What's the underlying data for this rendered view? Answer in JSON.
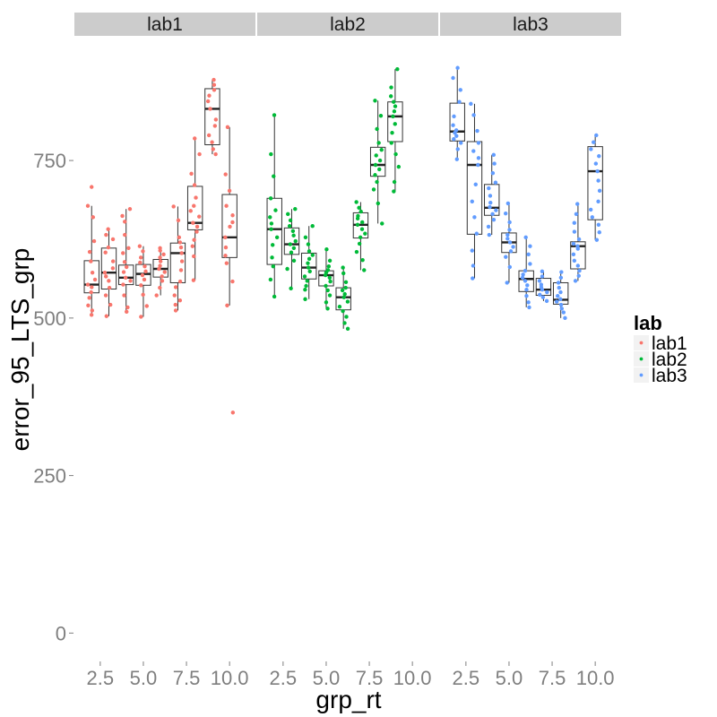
{
  "chart_data": {
    "type": "boxplot",
    "xlabel": "grp_rt",
    "ylabel": "error_95_LTS_grp",
    "ylim": [
      -45,
      945
    ],
    "y_ticks": [
      0,
      250,
      500,
      750
    ],
    "x_ticks": [
      "2.5",
      "5.0",
      "7.5",
      "10.0"
    ],
    "x_tick_values": [
      2.5,
      5.0,
      7.5,
      10.0
    ],
    "xlim": [
      1.0,
      11.5
    ],
    "legend": {
      "title": "lab",
      "position": "right",
      "entries": [
        "lab1",
        "lab2",
        "lab3"
      ]
    },
    "colors": {
      "lab1": "#F8766D",
      "lab2": "#00BA38",
      "lab3": "#619CFF"
    },
    "panels": [
      {
        "name": "lab1",
        "boxes": [
          {
            "x": 2.0,
            "whisker_low": 505,
            "q1": 540,
            "median": 553,
            "q3": 591,
            "whisker_high": 678,
            "points": [
              505,
              512,
              520,
              532,
              541,
              549,
              553,
              561,
              572,
              590,
              605,
              622,
              660,
              678,
              708
            ]
          },
          {
            "x": 3.0,
            "whisker_low": 503,
            "q1": 546,
            "median": 572,
            "q3": 611,
            "whisker_high": 641,
            "points": [
              503,
              521,
              536,
              548,
              559,
              566,
              572,
              579,
              590,
              604,
              612,
              625,
              632,
              641
            ]
          },
          {
            "x": 4.0,
            "whisker_low": 510,
            "q1": 553,
            "median": 564,
            "q3": 584,
            "whisker_high": 673,
            "points": [
              510,
              517,
              536,
              553,
              559,
              564,
              573,
              581,
              589,
              603,
              611,
              632,
              653,
              662,
              673
            ]
          },
          {
            "x": 5.0,
            "whisker_low": 502,
            "q1": 552,
            "median": 570,
            "q3": 585,
            "whisker_high": 614,
            "points": [
              502,
              519,
              537,
              552,
              561,
              568,
              574,
              582,
              588,
              596,
              606,
              614
            ]
          },
          {
            "x": 6.0,
            "whisker_low": 536,
            "q1": 565,
            "median": 578,
            "q3": 593,
            "whisker_high": 611,
            "points": [
              536,
              548,
              559,
              566,
              573,
              578,
              583,
              590,
              596,
              601,
              607,
              611
            ]
          },
          {
            "x": 7.0,
            "whisker_low": 512,
            "q1": 556,
            "median": 603,
            "q3": 619,
            "whisker_high": 677,
            "points": [
              512,
              521,
              528,
              536,
              549,
              558,
              576,
              590,
              603,
              612,
              620,
              628,
              655,
              677
            ]
          },
          {
            "x": 8.0,
            "whisker_low": 560,
            "q1": 640,
            "median": 651,
            "q3": 709,
            "whisker_high": 785,
            "points": [
              560,
              598,
              614,
              624,
              637,
              645,
              651,
              661,
              670,
              678,
              691,
              711,
              729,
              760,
              785
            ]
          },
          {
            "x": 9.0,
            "whisker_low": 760,
            "q1": 775,
            "median": 832,
            "q3": 864,
            "whisker_high": 878,
            "points": [
              760,
              768,
              779,
              790,
              805,
              815,
              832,
              844,
              853,
              862,
              870,
              878
            ]
          },
          {
            "x": 10.0,
            "whisker_low": 520,
            "q1": 596,
            "median": 628,
            "q3": 696,
            "whisker_high": 803,
            "points": [
              350,
              520,
              558,
              587,
              599,
              612,
              628,
              645,
              652,
              663,
              678,
              702,
              728,
              803
            ]
          }
        ]
      },
      {
        "name": "lab2",
        "boxes": [
          {
            "x": 2.0,
            "whisker_low": 534,
            "q1": 585,
            "median": 641,
            "q3": 690,
            "whisker_high": 822,
            "points": [
              534,
              561,
              582,
              596,
              616,
              628,
              641,
              650,
              660,
              671,
              690,
              725,
              760,
              822
            ]
          },
          {
            "x": 3.0,
            "whisker_low": 547,
            "q1": 601,
            "median": 617,
            "q3": 643,
            "whisker_high": 673,
            "points": [
              547,
              578,
              591,
              604,
              611,
              617,
              622,
              631,
              638,
              646,
              655,
              665,
              673
            ]
          },
          {
            "x": 4.0,
            "whisker_low": 530,
            "q1": 562,
            "median": 580,
            "q3": 603,
            "whisker_high": 646,
            "points": [
              530,
              545,
              551,
              559,
              566,
              574,
              580,
              587,
              594,
              600,
              606,
              617,
              628,
              646
            ]
          },
          {
            "x": 5.0,
            "whisker_low": 515,
            "q1": 551,
            "median": 568,
            "q3": 575,
            "whisker_high": 609,
            "points": [
              515,
              525,
              536,
              544,
              551,
              558,
              564,
              568,
              572,
              576,
              582,
              591,
              609
            ]
          },
          {
            "x": 6.0,
            "whisker_low": 483,
            "q1": 513,
            "median": 533,
            "q3": 548,
            "whisker_high": 580,
            "points": [
              483,
              492,
              502,
              511,
              518,
              526,
              533,
              538,
              544,
              548,
              557,
              571,
              580
            ]
          },
          {
            "x": 7.0,
            "whisker_low": 576,
            "q1": 627,
            "median": 648,
            "q3": 667,
            "whisker_high": 684,
            "points": [
              576,
              592,
              605,
              618,
              628,
              634,
              641,
              648,
              652,
              658,
              662,
              669,
              675,
              684
            ]
          },
          {
            "x": 8.0,
            "whisker_low": 650,
            "q1": 725,
            "median": 743,
            "q3": 771,
            "whisker_high": 845,
            "points": [
              650,
              682,
              704,
              716,
              727,
              736,
              743,
              750,
              758,
              767,
              778,
              800,
              821,
              845
            ]
          },
          {
            "x": 9.0,
            "whisker_low": 701,
            "q1": 780,
            "median": 820,
            "q3": 843,
            "whisker_high": 895,
            "points": [
              701,
              716,
              740,
              760,
              778,
              794,
              808,
              820,
              828,
              836,
              843,
              852,
              866,
              895
            ]
          }
        ]
      },
      {
        "name": "lab3",
        "boxes": [
          {
            "x": 2.0,
            "whisker_low": 752,
            "q1": 781,
            "median": 796,
            "q3": 841,
            "whisker_high": 897,
            "points": [
              752,
              768,
              778,
              784,
              789,
              794,
              798,
              806,
              820,
              843,
              862,
              881,
              897
            ]
          },
          {
            "x": 3.0,
            "whisker_low": 563,
            "q1": 633,
            "median": 743,
            "q3": 780,
            "whisker_high": 840,
            "points": [
              563,
              583,
              607,
              634,
              660,
              685,
              712,
              743,
              754,
              765,
              778,
              797,
              822,
              840
            ]
          },
          {
            "x": 4.0,
            "whisker_low": 632,
            "q1": 663,
            "median": 675,
            "q3": 712,
            "whisker_high": 759,
            "points": [
              632,
              645,
              656,
              665,
              671,
              676,
              683,
              694,
              706,
              715,
              730,
              745,
              759
            ]
          },
          {
            "x": 5.0,
            "whisker_low": 556,
            "q1": 604,
            "median": 620,
            "q3": 635,
            "whisker_high": 682,
            "points": [
              556,
              581,
              597,
              606,
              613,
              620,
              626,
              632,
              640,
              652,
              666,
              682
            ]
          },
          {
            "x": 6.0,
            "whisker_low": 517,
            "q1": 542,
            "median": 562,
            "q3": 575,
            "whisker_high": 628,
            "points": [
              517,
              525,
              535,
              545,
              552,
              559,
              564,
              569,
              575,
              586,
              601,
              614,
              628
            ]
          },
          {
            "x": 7.0,
            "whisker_low": 527,
            "q1": 536,
            "median": 545,
            "q3": 563,
            "whisker_high": 574,
            "points": [
              527,
              533,
              537,
              541,
              545,
              549,
              553,
              559,
              566,
              574
            ]
          },
          {
            "x": 8.0,
            "whisker_low": 500,
            "q1": 522,
            "median": 529,
            "q3": 556,
            "whisker_high": 573,
            "points": [
              500,
              509,
              515,
              521,
              526,
              530,
              535,
              541,
              548,
              556,
              564,
              573
            ]
          },
          {
            "x": 9.0,
            "whisker_low": 559,
            "q1": 578,
            "median": 614,
            "q3": 621,
            "whisker_high": 681,
            "points": [
              559,
              567,
              575,
              583,
              591,
              601,
              610,
              614,
              618,
              625,
              637,
              651,
              665,
              681
            ]
          },
          {
            "x": 10.0,
            "whisker_low": 624,
            "q1": 656,
            "median": 733,
            "q3": 772,
            "whisker_high": 790,
            "points": [
              624,
              636,
              648,
              660,
              672,
              685,
              702,
              718,
              733,
              745,
              757,
              768,
              779,
              790
            ]
          }
        ]
      }
    ]
  }
}
